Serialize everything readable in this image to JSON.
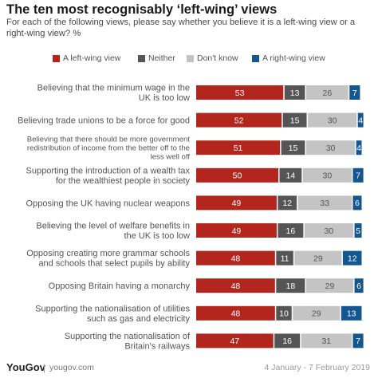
{
  "title": "The ten most recognisably ‘left-wing’ views",
  "subtitle": "For each of the following views, please say whether you believe it is a left-wing view or a right-wing view? %",
  "footer": {
    "brand": "YouGov",
    "separator": "|",
    "site": "yougov.com",
    "dates": "4 January - 7 February 2019"
  },
  "chart_data": {
    "type": "bar",
    "orientation": "horizontal",
    "stacked": true,
    "legend_position": "top",
    "categories": [
      [
        "Believing that the minimum wage in the",
        "UK is too low"
      ],
      [
        "Believing trade unions to be a force for good"
      ],
      [
        "Believing that there should be more government",
        "redistribution of income from the better off to the",
        "less well off"
      ],
      [
        "Supporting the introduction of a wealth tax",
        "for the wealthiest people in society"
      ],
      [
        "Opposing the UK having nuclear weapons"
      ],
      [
        "Believing the level of welfare benefits in",
        "the UK is too low"
      ],
      [
        "Opposing creating more grammar schools",
        "and schools that select pupils by ability"
      ],
      [
        "Opposing Britain having a monarchy"
      ],
      [
        "Supporting the nationalisation of utilities",
        "such as gas and electricity"
      ],
      [
        "Supporting the nationalisation of",
        "Britain's railways"
      ]
    ],
    "series": [
      {
        "name": "A left-wing view",
        "color": "#b3261e",
        "label_color": "#ffffff",
        "values": [
          53,
          52,
          51,
          50,
          49,
          49,
          48,
          48,
          48,
          47
        ]
      },
      {
        "name": "Neither",
        "color": "#555555",
        "label_color": "#ffffff",
        "values": [
          13,
          15,
          15,
          14,
          12,
          16,
          11,
          18,
          10,
          16
        ]
      },
      {
        "name": "Don't know",
        "color": "#c4c4c4",
        "label_color": "#555555",
        "values": [
          26,
          30,
          30,
          30,
          33,
          30,
          29,
          29,
          29,
          31
        ]
      },
      {
        "name": "A right-wing view",
        "color": "#14568f",
        "label_color": "#ffffff",
        "values": [
          7,
          4,
          4,
          7,
          6,
          5,
          12,
          6,
          13,
          7
        ]
      }
    ],
    "xlim": [
      0,
      100
    ]
  }
}
